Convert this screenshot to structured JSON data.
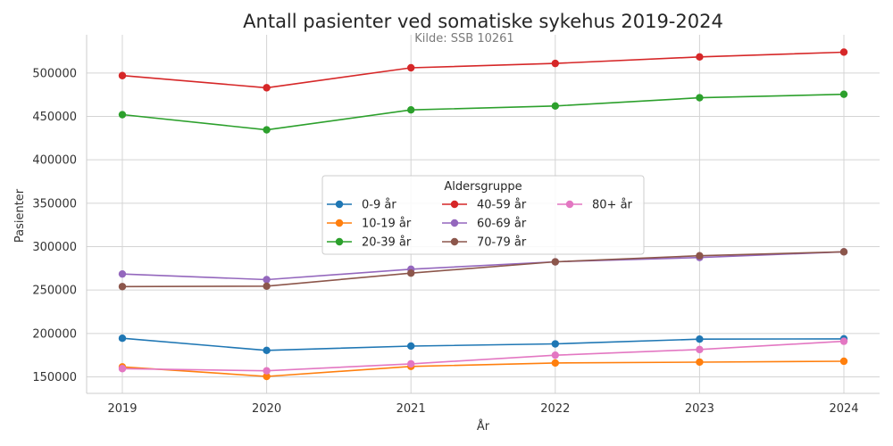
{
  "chart_data": {
    "type": "line",
    "title": "Antall pasienter ved somatiske sykehus 2019-2024",
    "subtitle": "Kilde: SSB 10261",
    "xlabel": "År",
    "ylabel": "Pasienter",
    "x": [
      "2019",
      "2020",
      "2021",
      "2022",
      "2023",
      "2024"
    ],
    "ylim": [
      131000,
      544000
    ],
    "yticks": [
      150000,
      200000,
      250000,
      300000,
      350000,
      400000,
      450000,
      500000
    ],
    "grid": true,
    "legend": {
      "title": "Aldersgruppe",
      "placement": "center",
      "columns": 3
    },
    "series": [
      {
        "name": "0-9 år",
        "color": "#1f77b4",
        "values": [
          194500,
          180500,
          185500,
          188000,
          193500,
          193800
        ]
      },
      {
        "name": "10-19 år",
        "color": "#ff7f0e",
        "values": [
          161500,
          150500,
          162000,
          166000,
          167000,
          168000
        ]
      },
      {
        "name": "20-39 år",
        "color": "#2ca02c",
        "values": [
          452000,
          434500,
          457500,
          462000,
          471500,
          475500
        ]
      },
      {
        "name": "40-59 år",
        "color": "#d62728",
        "values": [
          497000,
          483000,
          506000,
          511000,
          518500,
          524000
        ]
      },
      {
        "name": "60-69 år",
        "color": "#9467bd",
        "values": [
          268500,
          262000,
          274000,
          282500,
          287500,
          294000
        ]
      },
      {
        "name": "70-79 år",
        "color": "#8c564b",
        "values": [
          254000,
          254500,
          269500,
          282500,
          289500,
          294000
        ]
      },
      {
        "name": "80+ år",
        "color": "#e377c2",
        "values": [
          159500,
          157000,
          165000,
          175000,
          181500,
          191000
        ]
      }
    ]
  }
}
